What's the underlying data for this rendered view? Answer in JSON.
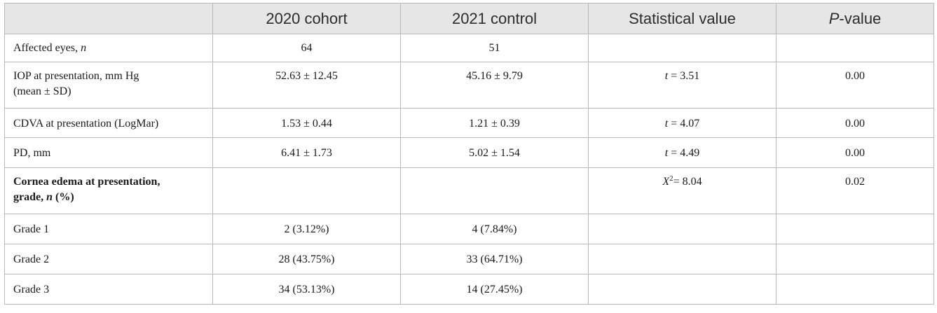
{
  "header": {
    "col0": "",
    "col1": "2020 cohort",
    "col2": "2021 control",
    "col3": "Statistical value",
    "col4_prefix": "P",
    "col4_suffix": "-value"
  },
  "rows": {
    "affected": {
      "label": "Affected eyes, ",
      "label_n": "n",
      "c2020": "64",
      "c2021": "51",
      "stat": "",
      "p": ""
    },
    "iop": {
      "label_line1": "IOP at presentation, mm Hg",
      "label_line2": "(mean ± SD)",
      "c2020": "52.63 ± 12.45",
      "c2021": "45.16 ± 9.79",
      "stat_var": "t",
      "stat_val": " = 3.51",
      "p": "0.00"
    },
    "cdva": {
      "label": "CDVA at presentation (LogMar)",
      "c2020": "1.53 ± 0.44",
      "c2021": "1.21 ± 0.39",
      "stat_var": "t",
      "stat_val": " = 4.07",
      "p": "0.00"
    },
    "pd": {
      "label": "PD, mm",
      "c2020": "6.41 ± 1.73",
      "c2021": "5.02 ± 1.54",
      "stat_var": "t",
      "stat_val": " = 4.49",
      "p": "0.00"
    },
    "edema": {
      "label_line1": "Cornea edema at presentation,",
      "label_line2_prefix": "grade, ",
      "label_line2_n": "n",
      "label_line2_suffix": " (%)",
      "c2020": "",
      "c2021": "",
      "stat_var": "X",
      "stat_sup": "2",
      "stat_val": "= 8.04",
      "p": "0.02"
    },
    "grade1": {
      "label": "Grade 1",
      "c2020": "2 (3.12%)",
      "c2021": "4 (7.84%)",
      "stat": "",
      "p": ""
    },
    "grade2": {
      "label": "Grade 2",
      "c2020": "28 (43.75%)",
      "c2021": "33 (64.71%)",
      "stat": "",
      "p": ""
    },
    "grade3": {
      "label": "Grade 3",
      "c2020": "34 (53.13%)",
      "c2021": "14 (27.45%)",
      "stat": "",
      "p": ""
    }
  }
}
